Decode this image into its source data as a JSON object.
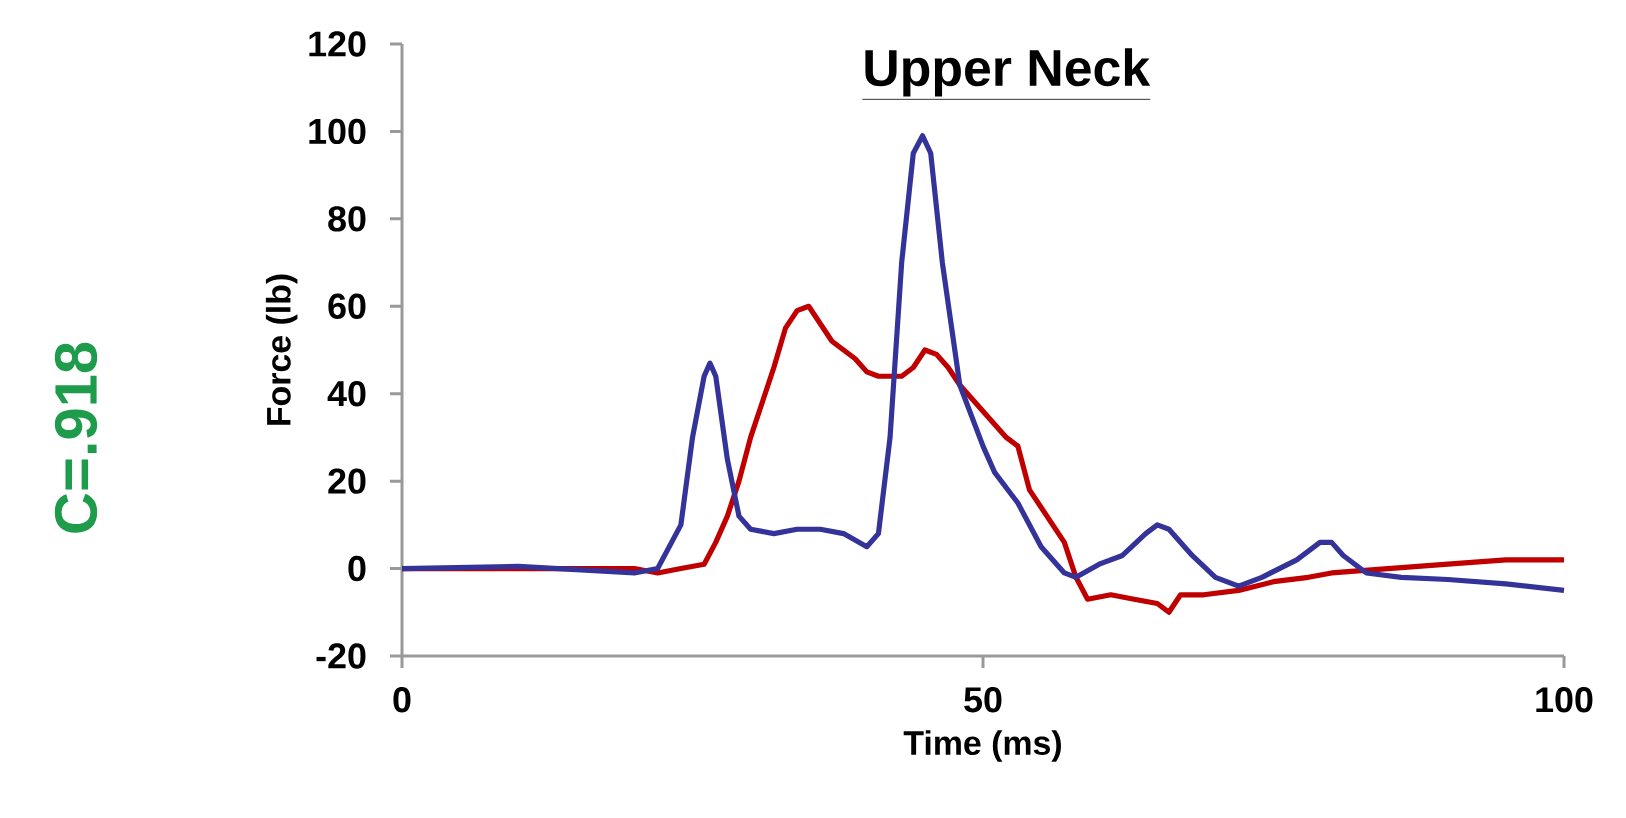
{
  "chart_data": {
    "type": "line",
    "title": "Upper Neck",
    "xlabel": "Time (ms)",
    "ylabel": "Force (lb)",
    "annotations": [
      "C=.918"
    ],
    "xlim": [
      0,
      100
    ],
    "ylim": [
      -20,
      120
    ],
    "xticks": [
      0,
      50,
      100
    ],
    "yticks": [
      -20,
      0,
      20,
      40,
      60,
      80,
      100,
      120
    ],
    "series": [
      {
        "color": "#c00000",
        "x": [
          0,
          20,
          22,
          24,
          26,
          27,
          28,
          29,
          30,
          31,
          32,
          33,
          34,
          35,
          36,
          37,
          38,
          39,
          40,
          41,
          43,
          44,
          45,
          46,
          47,
          48,
          50,
          52,
          53,
          54,
          56,
          57,
          58,
          59,
          61,
          63,
          65,
          66,
          67,
          69,
          72,
          75,
          78,
          80,
          85,
          90,
          95,
          100
        ],
        "values": [
          0,
          0,
          -1,
          0,
          1,
          6,
          12,
          20,
          30,
          38,
          46,
          55,
          59,
          60,
          56,
          52,
          50,
          48,
          45,
          44,
          44,
          46,
          50,
          49,
          46,
          42,
          36,
          30,
          28,
          18,
          10,
          6,
          -2,
          -7,
          -6,
          -7,
          -8,
          -10,
          -6,
          -6,
          -5,
          -3,
          -2,
          -1,
          0,
          1,
          2,
          2
        ]
      },
      {
        "color": "#333399",
        "x": [
          0,
          10,
          20,
          22,
          24,
          25,
          26,
          26.5,
          27,
          28,
          29,
          30,
          32,
          34,
          36,
          38,
          40,
          41,
          42,
          43,
          44,
          44.8,
          45.5,
          46.5,
          48,
          50,
          51,
          53,
          55,
          57,
          58,
          60,
          62,
          64,
          65,
          66,
          68,
          70,
          72,
          74,
          77,
          79,
          80,
          81,
          83,
          86,
          90,
          95,
          100
        ],
        "values": [
          0,
          0.5,
          -1,
          0,
          10,
          30,
          44,
          47,
          44,
          25,
          12,
          9,
          8,
          9,
          9,
          8,
          5,
          8,
          30,
          70,
          95,
          99,
          95,
          70,
          42,
          28,
          22,
          15,
          5,
          -1,
          -2,
          1,
          3,
          8,
          10,
          9,
          3,
          -2,
          -4,
          -2,
          2,
          6,
          6,
          3,
          -1,
          -2,
          -2.5,
          -3.5,
          -5
        ]
      }
    ]
  }
}
